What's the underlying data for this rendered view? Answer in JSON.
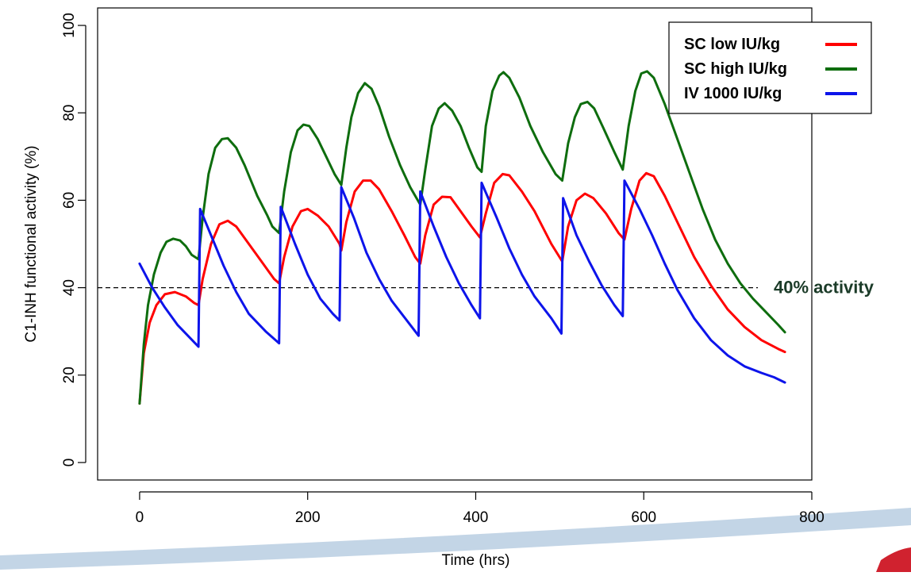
{
  "chart_data": {
    "type": "line",
    "title": "",
    "xlabel": "Time (hrs)",
    "ylabel": "C1-INH functional activity (%)",
    "xlim": [
      -50,
      800
    ],
    "ylim": [
      -4,
      104
    ],
    "x_ticks": [
      0,
      200,
      400,
      600,
      800
    ],
    "y_ticks": [
      0,
      20,
      40,
      60,
      80,
      100
    ],
    "grid": false,
    "legend_position": "top-right",
    "reference_line": {
      "y": 40,
      "label": "40% activity",
      "style": "dashed",
      "color": "#1b3b28"
    },
    "series": [
      {
        "name": "SC low IU/kg",
        "color": "#ff0000",
        "points": [
          [
            0,
            13.5
          ],
          [
            5,
            25
          ],
          [
            12,
            32
          ],
          [
            20,
            36
          ],
          [
            30,
            38.5
          ],
          [
            42,
            39
          ],
          [
            55,
            38
          ],
          [
            65,
            36.5
          ],
          [
            70,
            36
          ],
          [
            75,
            42
          ],
          [
            85,
            50
          ],
          [
            95,
            54.5
          ],
          [
            105,
            55.3
          ],
          [
            115,
            54
          ],
          [
            130,
            50
          ],
          [
            145,
            46
          ],
          [
            160,
            42
          ],
          [
            166,
            41
          ],
          [
            172,
            47
          ],
          [
            182,
            54
          ],
          [
            192,
            57.5
          ],
          [
            200,
            58
          ],
          [
            212,
            56.5
          ],
          [
            225,
            54
          ],
          [
            238,
            50
          ],
          [
            240,
            48.5
          ],
          [
            246,
            55
          ],
          [
            256,
            62
          ],
          [
            266,
            64.5
          ],
          [
            275,
            64.5
          ],
          [
            285,
            62.5
          ],
          [
            300,
            57.5
          ],
          [
            315,
            52
          ],
          [
            328,
            47
          ],
          [
            334,
            45.5
          ],
          [
            340,
            52
          ],
          [
            350,
            59
          ],
          [
            360,
            60.8
          ],
          [
            370,
            60.7
          ],
          [
            382,
            57.5
          ],
          [
            395,
            54
          ],
          [
            405,
            51.5
          ],
          [
            412,
            57
          ],
          [
            422,
            64
          ],
          [
            432,
            66
          ],
          [
            440,
            65.7
          ],
          [
            455,
            62
          ],
          [
            470,
            57.5
          ],
          [
            490,
            50
          ],
          [
            503,
            46
          ],
          [
            510,
            54
          ],
          [
            520,
            60
          ],
          [
            530,
            61.5
          ],
          [
            540,
            60.5
          ],
          [
            555,
            57
          ],
          [
            570,
            52.5
          ],
          [
            577,
            51
          ],
          [
            585,
            58
          ],
          [
            595,
            64.5
          ],
          [
            603,
            66.2
          ],
          [
            612,
            65.5
          ],
          [
            625,
            61
          ],
          [
            640,
            55
          ],
          [
            660,
            47
          ],
          [
            680,
            40.5
          ],
          [
            700,
            35
          ],
          [
            720,
            31
          ],
          [
            740,
            28
          ],
          [
            760,
            26
          ],
          [
            768,
            25.3
          ]
        ]
      },
      {
        "name": "SC high IU/kg",
        "color": "#0e6d0e",
        "points": [
          [
            0,
            13.5
          ],
          [
            5,
            27
          ],
          [
            10,
            36
          ],
          [
            17,
            43
          ],
          [
            25,
            48
          ],
          [
            32,
            50.5
          ],
          [
            40,
            51.2
          ],
          [
            48,
            50.8
          ],
          [
            55,
            49.5
          ],
          [
            62,
            47.5
          ],
          [
            70,
            46.5
          ],
          [
            75,
            56
          ],
          [
            82,
            66
          ],
          [
            90,
            72
          ],
          [
            98,
            74
          ],
          [
            105,
            74.2
          ],
          [
            115,
            72
          ],
          [
            125,
            68
          ],
          [
            140,
            61
          ],
          [
            152,
            56.5
          ],
          [
            158,
            54
          ],
          [
            166,
            52.5
          ],
          [
            172,
            62
          ],
          [
            180,
            71
          ],
          [
            188,
            76
          ],
          [
            195,
            77.3
          ],
          [
            202,
            77
          ],
          [
            212,
            74
          ],
          [
            222,
            70
          ],
          [
            232,
            66
          ],
          [
            240,
            63.5
          ],
          [
            246,
            72
          ],
          [
            252,
            79
          ],
          [
            260,
            84.5
          ],
          [
            268,
            86.8
          ],
          [
            276,
            85.5
          ],
          [
            285,
            81.5
          ],
          [
            297,
            74.5
          ],
          [
            310,
            68
          ],
          [
            322,
            63
          ],
          [
            334,
            59
          ],
          [
            340,
            67
          ],
          [
            348,
            77
          ],
          [
            356,
            81
          ],
          [
            363,
            82.2
          ],
          [
            372,
            80.5
          ],
          [
            382,
            77
          ],
          [
            392,
            72
          ],
          [
            402,
            67.5
          ],
          [
            407,
            66.5
          ],
          [
            412,
            77
          ],
          [
            420,
            85
          ],
          [
            428,
            88.5
          ],
          [
            433,
            89.3
          ],
          [
            440,
            88
          ],
          [
            452,
            83.5
          ],
          [
            465,
            77
          ],
          [
            480,
            71
          ],
          [
            495,
            66
          ],
          [
            503,
            64.5
          ],
          [
            510,
            73
          ],
          [
            518,
            79
          ],
          [
            525,
            82
          ],
          [
            533,
            82.5
          ],
          [
            541,
            81
          ],
          [
            552,
            76.5
          ],
          [
            565,
            71
          ],
          [
            575,
            67
          ],
          [
            582,
            77
          ],
          [
            590,
            85
          ],
          [
            597,
            89
          ],
          [
            604,
            89.5
          ],
          [
            612,
            88
          ],
          [
            625,
            82
          ],
          [
            640,
            74
          ],
          [
            655,
            66
          ],
          [
            670,
            58
          ],
          [
            685,
            51
          ],
          [
            700,
            45.5
          ],
          [
            715,
            41
          ],
          [
            730,
            37.5
          ],
          [
            745,
            34.5
          ],
          [
            760,
            31.5
          ],
          [
            768,
            29.8
          ]
        ]
      },
      {
        "name": "IV 1000 IU/kg",
        "color": "#0d14ea",
        "points": [
          [
            0,
            45.5
          ],
          [
            15,
            40
          ],
          [
            30,
            35.5
          ],
          [
            45,
            31.5
          ],
          [
            60,
            28.5
          ],
          [
            70,
            26.5
          ],
          [
            72,
            58
          ],
          [
            85,
            52
          ],
          [
            100,
            45
          ],
          [
            115,
            39
          ],
          [
            130,
            34
          ],
          [
            150,
            30
          ],
          [
            166,
            27.3
          ],
          [
            168,
            58.5
          ],
          [
            185,
            50
          ],
          [
            200,
            43
          ],
          [
            215,
            37.5
          ],
          [
            230,
            34
          ],
          [
            238,
            32.5
          ],
          [
            240,
            63
          ],
          [
            255,
            56
          ],
          [
            270,
            48
          ],
          [
            285,
            42
          ],
          [
            300,
            37
          ],
          [
            320,
            32
          ],
          [
            332,
            29
          ],
          [
            334,
            62
          ],
          [
            350,
            54
          ],
          [
            365,
            47
          ],
          [
            380,
            41
          ],
          [
            395,
            36
          ],
          [
            405,
            33
          ],
          [
            407,
            64
          ],
          [
            425,
            56
          ],
          [
            440,
            49
          ],
          [
            455,
            43
          ],
          [
            470,
            38
          ],
          [
            490,
            33
          ],
          [
            502,
            29.5
          ],
          [
            504,
            60.5
          ],
          [
            520,
            52
          ],
          [
            535,
            46
          ],
          [
            550,
            40.5
          ],
          [
            565,
            36
          ],
          [
            575,
            33.5
          ],
          [
            577,
            64.5
          ],
          [
            595,
            58
          ],
          [
            610,
            52
          ],
          [
            625,
            45.5
          ],
          [
            640,
            39.5
          ],
          [
            660,
            33
          ],
          [
            680,
            28
          ],
          [
            700,
            24.5
          ],
          [
            720,
            22
          ],
          [
            740,
            20.5
          ],
          [
            755,
            19.5
          ],
          [
            768,
            18.3
          ]
        ]
      }
    ]
  }
}
